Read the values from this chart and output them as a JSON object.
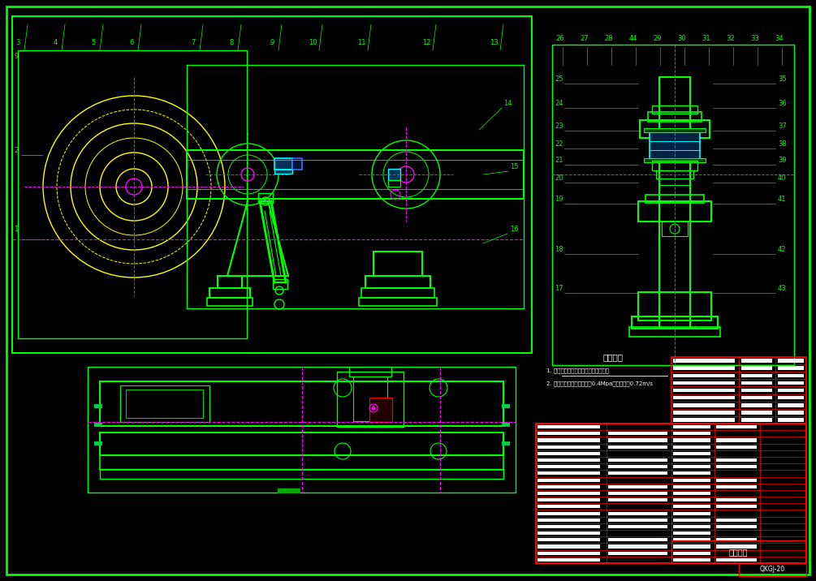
{
  "bg_color": "#000000",
  "border_color": "#00ff00",
  "line_color_green": "#00ff00",
  "line_color_yellow": "#ffff00",
  "line_color_cyan": "#00ffff",
  "line_color_magenta": "#ff00ff",
  "line_color_red": "#ff0000",
  "line_color_white": "#ffffff",
  "line_color_blue": "#0000ff",
  "title": "技术要求",
  "tech_req_1": "1. 安装前各元件检查，零部件表面并普",
  "tech_req_2": "2. 管路中气压的工作压力为0.4Mpa，排气量为0.72m/s",
  "drawing_no": "QKGJ-20",
  "drawing_title": "夹制装置",
  "fig_width": 10.05,
  "fig_height": 7.16
}
